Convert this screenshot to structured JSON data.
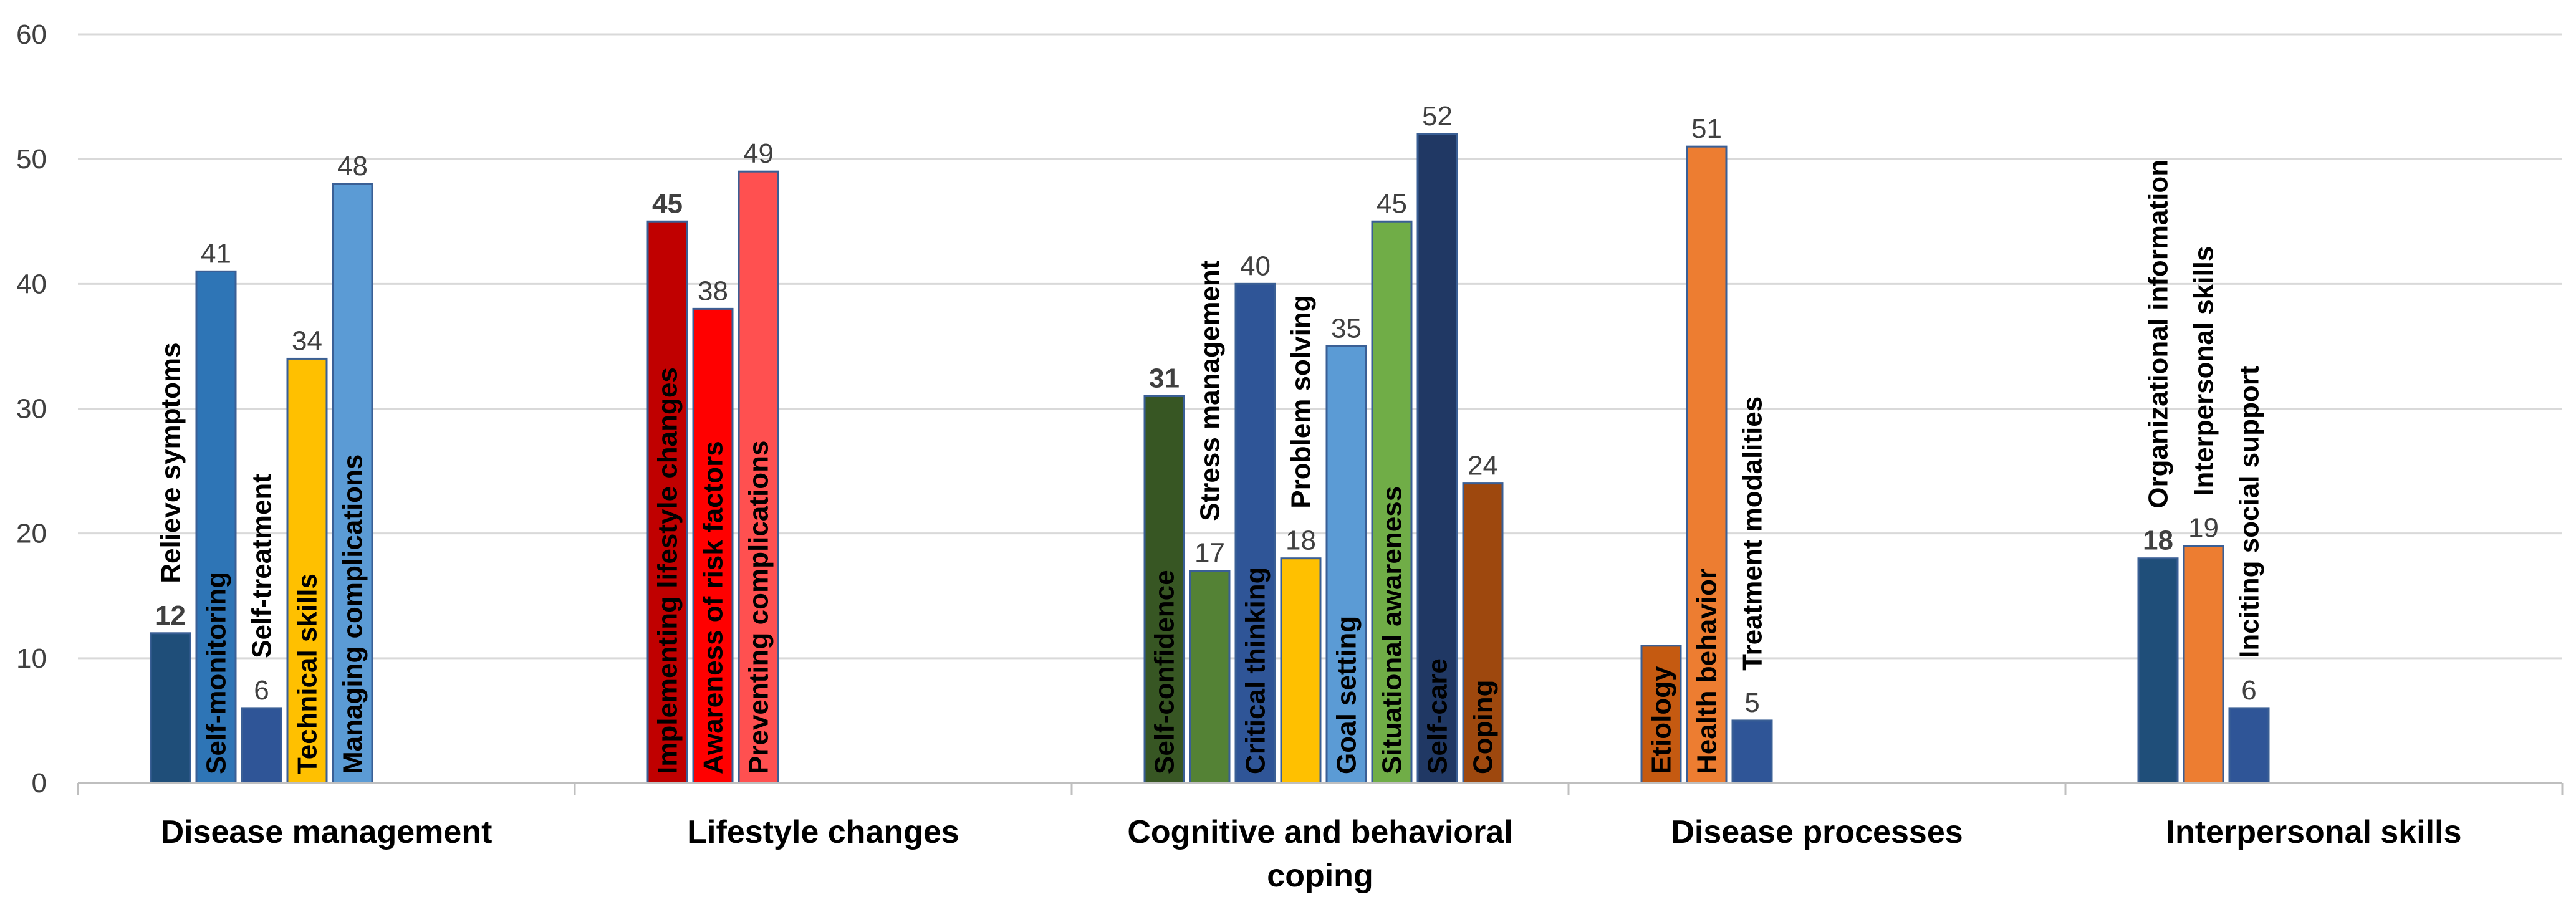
{
  "chart_data": {
    "type": "bar",
    "title": "",
    "xlabel": "",
    "ylabel": "",
    "ylim": [
      0,
      60
    ],
    "yticks": [
      0,
      10,
      20,
      30,
      40,
      50,
      60
    ],
    "grid": true,
    "groups": [
      {
        "label": "Disease management",
        "label_lines": [
          "Disease management"
        ],
        "bars": [
          {
            "label": "Relieve symptoms",
            "value": 12,
            "color": "#1F4E79",
            "value_bold": true
          },
          {
            "label": "Self-monitoring",
            "value": 41,
            "color": "#2E75B6",
            "value_bold": false
          },
          {
            "label": "Self-treatment",
            "value": 6,
            "color": "#2F5597",
            "value_bold": false
          },
          {
            "label": "Technical skills",
            "value": 34,
            "color": "#FFC000",
            "value_bold": false
          },
          {
            "label": "Managing complications",
            "value": 48,
            "color": "#5B9BD5",
            "value_bold": false
          }
        ]
      },
      {
        "label": "Lifestyle changes",
        "label_lines": [
          "Lifestyle changes"
        ],
        "bars": [
          {
            "label": "Implementing lifestyle changes",
            "value": 45,
            "color": "#C00000",
            "value_bold": true
          },
          {
            "label": "Awareness of risk factors",
            "value": 38,
            "color": "#FF0000",
            "value_bold": false
          },
          {
            "label": "Preventing complications",
            "value": 49,
            "color": "#FF5050",
            "value_bold": false
          }
        ]
      },
      {
        "label": "Cognitive and behavioral coping",
        "label_lines": [
          "Cognitive and behavioral",
          "coping"
        ],
        "bars": [
          {
            "label": "Self-confidence",
            "value": 31,
            "color": "#375623",
            "value_bold": true
          },
          {
            "label": "Stress management",
            "value": 17,
            "color": "#548235",
            "value_bold": false
          },
          {
            "label": "Critical thinking",
            "value": 40,
            "color": "#2F5597",
            "value_bold": false
          },
          {
            "label": "Problem solving",
            "value": 18,
            "color": "#FFC000",
            "value_bold": false
          },
          {
            "label": "Goal setting",
            "value": 35,
            "color": "#5B9BD5",
            "value_bold": false
          },
          {
            "label": "Situational awareness",
            "value": 45,
            "color": "#70AD47",
            "value_bold": false
          },
          {
            "label": "Self-care",
            "value": 52,
            "color": "#203864",
            "value_bold": false
          },
          {
            "label": "Coping",
            "value": 24,
            "color": "#9E480E",
            "value_bold": false
          }
        ]
      },
      {
        "label": "Disease processes",
        "label_lines": [
          "Disease processes"
        ],
        "bars": [
          {
            "label": "Etiology",
            "value": 11,
            "color": "#C55A11",
            "value_bold": false,
            "show_value": false
          },
          {
            "label": "Health behavior",
            "value": 51,
            "color": "#ED7D31",
            "value_bold": false
          },
          {
            "label": "Treatment modalities",
            "value": 5,
            "color": "#2F5597",
            "value_bold": false
          }
        ]
      },
      {
        "label": "Interpersonal skills",
        "label_lines": [
          "Interpersonal skills"
        ],
        "bars": [
          {
            "label": "Organizational information",
            "value": 18,
            "color": "#1F4E79",
            "value_bold": true
          },
          {
            "label": "Interpersonal skills",
            "value": 19,
            "color": "#ED7D31",
            "value_bold": false
          },
          {
            "label": "Inciting social support",
            "value": 6,
            "color": "#2F5597",
            "value_bold": false
          }
        ]
      }
    ]
  }
}
